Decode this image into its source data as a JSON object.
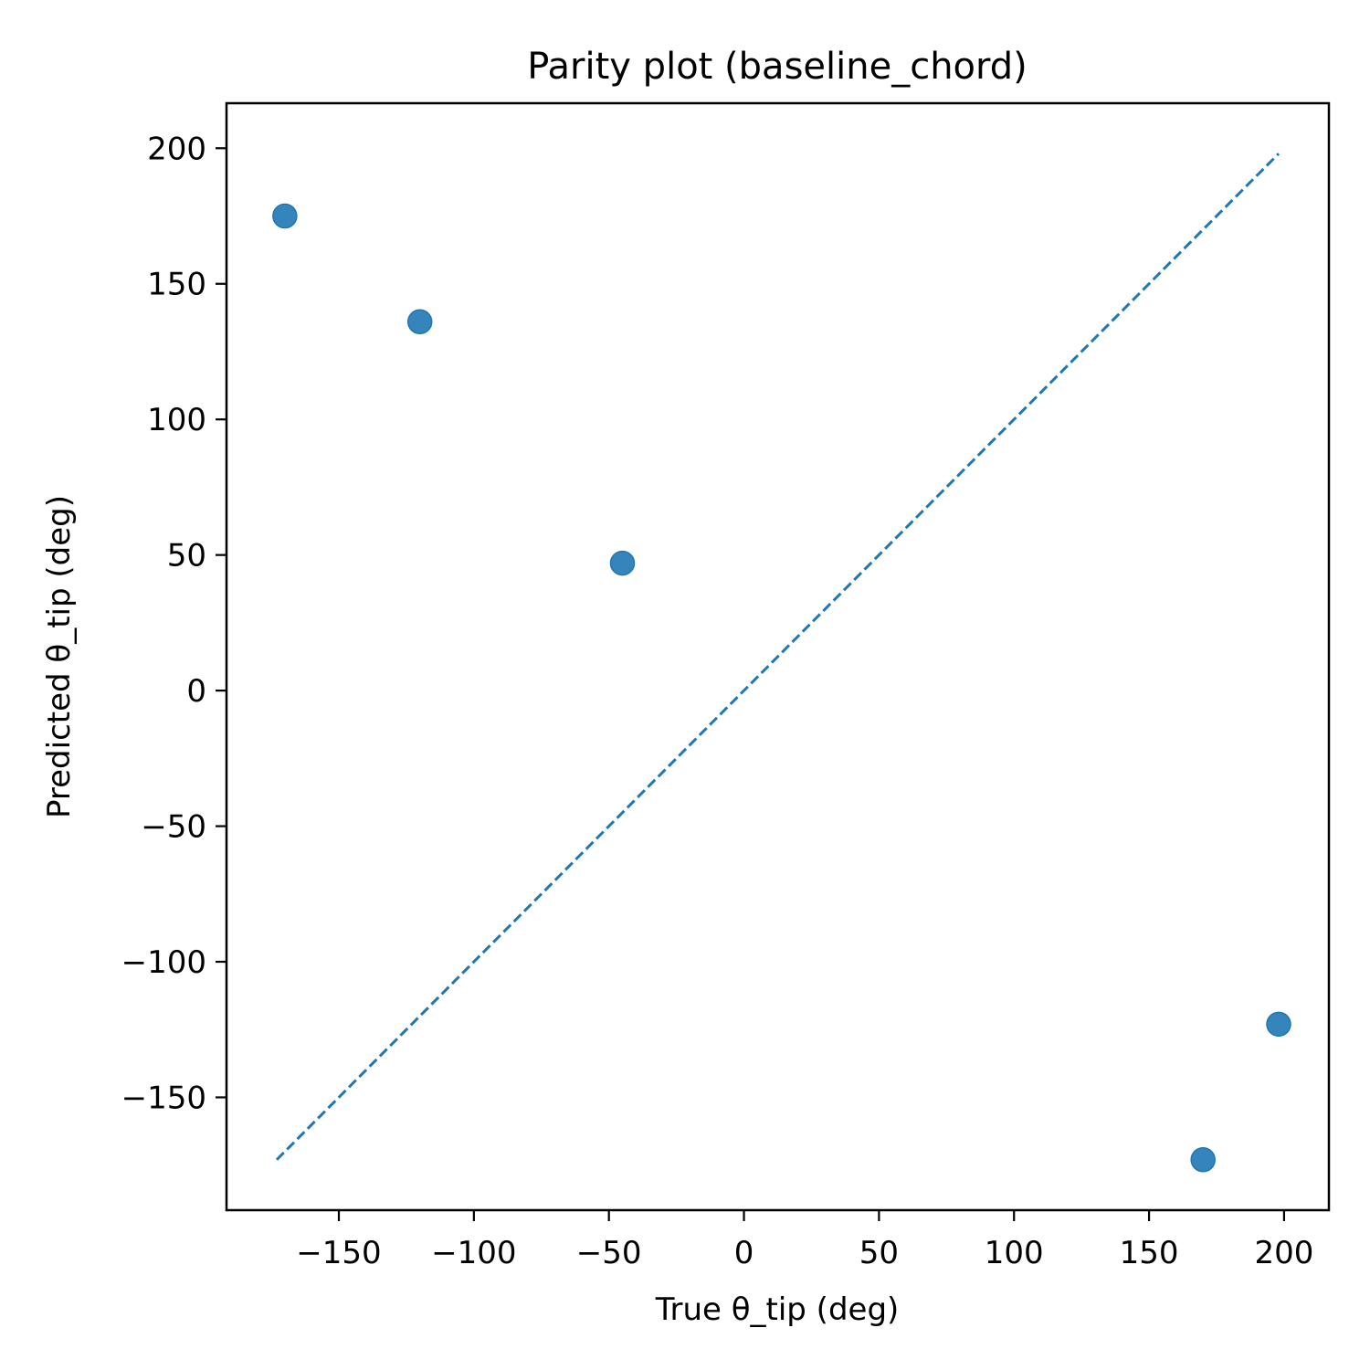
{
  "chart_data": {
    "type": "scatter",
    "title": "Parity plot (baseline_chord)",
    "xlabel": "True θ_tip (deg)",
    "ylabel": "Predicted θ_tip (deg)",
    "xlim": [
      -191.6,
      216.6
    ],
    "ylim": [
      -191.6,
      216.6
    ],
    "xticks": [
      -150,
      -100,
      -50,
      0,
      50,
      100,
      150,
      200
    ],
    "yticks": [
      -150,
      -100,
      -50,
      0,
      50,
      100,
      150,
      200
    ],
    "x_tick_labels": [
      "−150",
      "−100",
      "−50",
      "0",
      "50",
      "100",
      "150",
      "200"
    ],
    "y_tick_labels": [
      "−150",
      "−100",
      "−50",
      "0",
      "50",
      "100",
      "150",
      "200"
    ],
    "grid": false,
    "series": [
      {
        "marker": "circle",
        "color": "#1f77b4",
        "x": [
          -170,
          -120,
          -45,
          170,
          198
        ],
        "y": [
          175,
          136,
          47,
          -173,
          -123
        ]
      }
    ],
    "reference_line": {
      "style": "dashed",
      "color": "#1f77b4",
      "x": [
        -173,
        198
      ],
      "y": [
        -173,
        198
      ]
    }
  }
}
